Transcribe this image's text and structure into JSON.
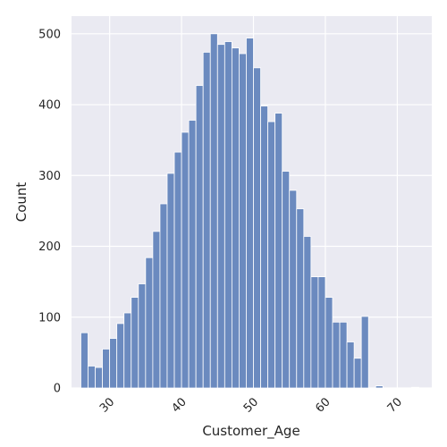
{
  "chart_data": {
    "type": "histogram",
    "title": "",
    "xlabel": "Customer_Age",
    "ylabel": "Count",
    "xlim": [
      24.7,
      74.8
    ],
    "ylim": [
      0,
      525
    ],
    "xticks": [
      30,
      40,
      50,
      60,
      70
    ],
    "yticks": [
      0,
      100,
      200,
      300,
      400,
      500
    ],
    "grid": true,
    "bin_start": 26,
    "bin_width": 1,
    "values": [
      78,
      31,
      29,
      55,
      70,
      91,
      106,
      128,
      147,
      184,
      221,
      260,
      303,
      333,
      361,
      378,
      427,
      474,
      500,
      485,
      489,
      480,
      472,
      494,
      452,
      398,
      376,
      388,
      306,
      279,
      253,
      214,
      157,
      157,
      128,
      93,
      93,
      65,
      42,
      101,
      0,
      3,
      0,
      0,
      0,
      0,
      1
    ],
    "colors": {
      "bar": "#6b8abf",
      "bar_edge": "#ffffff",
      "plot_bg": "#eaeaf2",
      "grid": "#ffffff"
    }
  }
}
